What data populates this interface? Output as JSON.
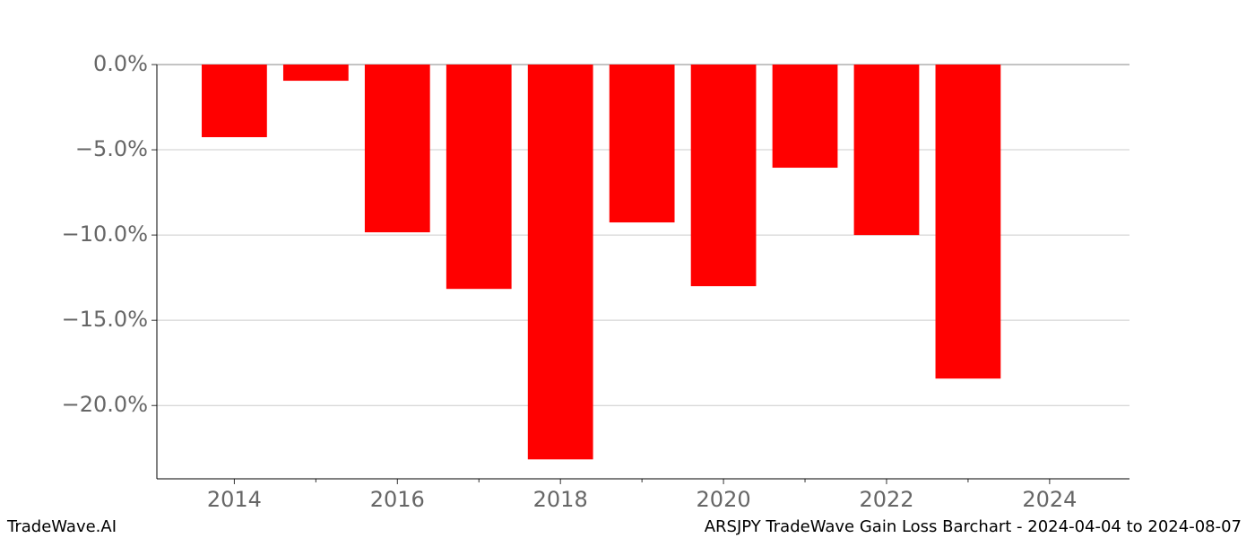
{
  "chart_data": {
    "type": "bar",
    "x": [
      2014,
      2015,
      2016,
      2017,
      2018,
      2019,
      2020,
      2021,
      2022,
      2023
    ],
    "values": [
      -4.26,
      -0.95,
      -9.84,
      -13.16,
      -23.16,
      -9.26,
      -13.0,
      -6.05,
      -10.0,
      -18.42
    ],
    "color": "#ff0000",
    "xlim": [
      2013.05,
      2024.98
    ],
    "xticks": [
      2014,
      2016,
      2018,
      2020,
      2022,
      2024
    ],
    "xminor_ticks": [
      2015,
      2017,
      2019,
      2021,
      2023
    ],
    "ylim": [
      -24.3,
      0
    ],
    "yticks": [
      {
        "value": 0,
        "label": "0.0%"
      },
      {
        "value": -5,
        "label": "−5.0%"
      },
      {
        "value": -10,
        "label": "−10.0%"
      },
      {
        "value": -15,
        "label": "−15.0%"
      },
      {
        "value": -20,
        "label": "−20.0%"
      }
    ],
    "grid": true,
    "footer_left": "TradeWave.AI",
    "footer_right": "ARSJPY TradeWave Gain Loss Barchart - 2024-04-04 to 2024-08-07"
  }
}
